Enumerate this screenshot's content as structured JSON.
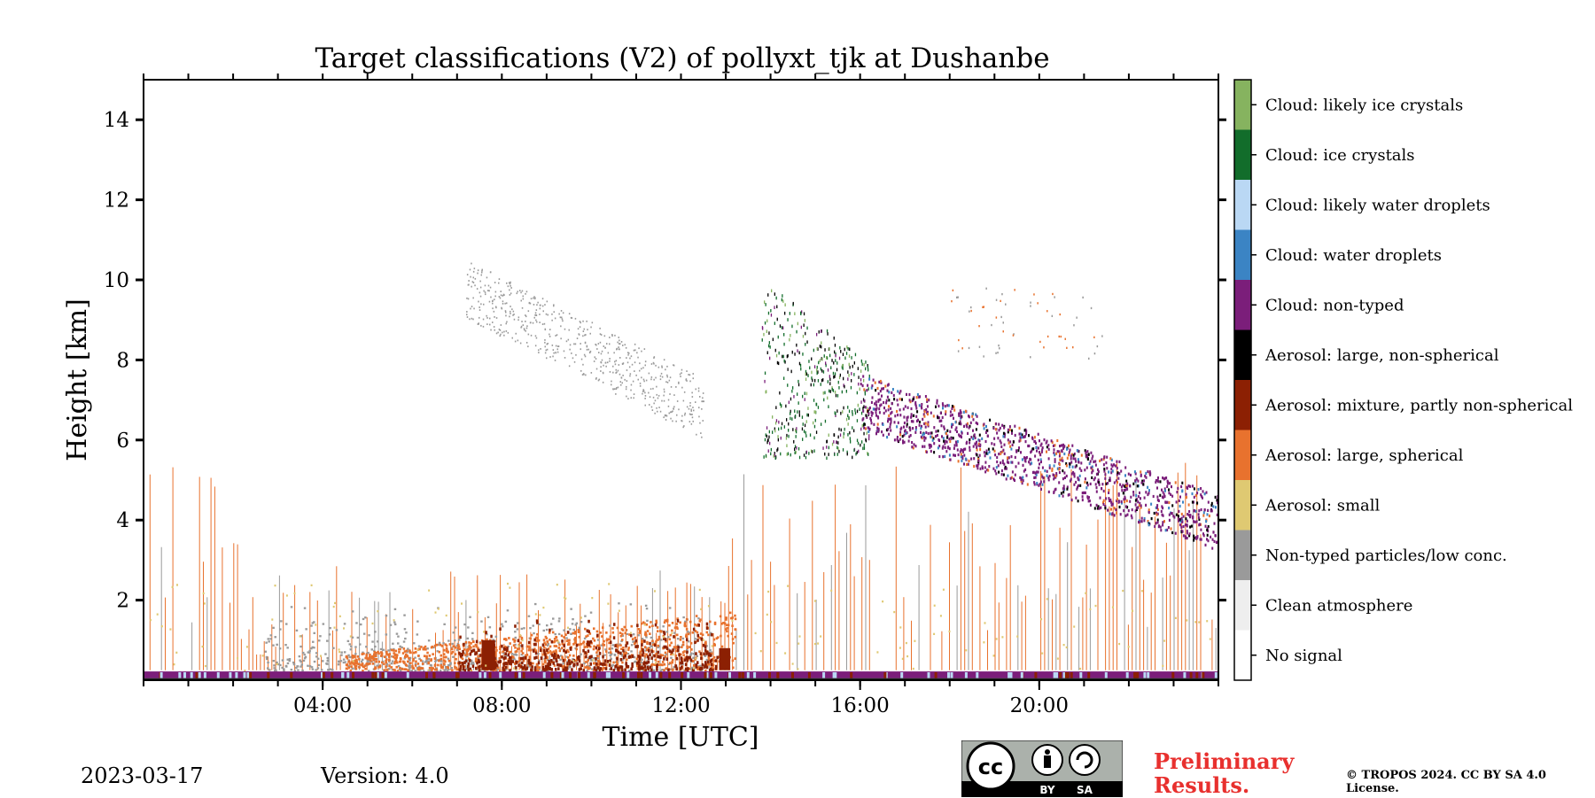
{
  "header": {
    "title": "Target classifications (V2) of pollyxt_tjk at Dushanbe"
  },
  "footer": {
    "date": "2023-03-17",
    "version": "Version: 4.0",
    "preliminary": "Preliminary Results.",
    "copyright": "© TROPOS 2024. CC BY SA 4.0 License.",
    "license_badge": {
      "by_label": "BY",
      "sa_label": "SA"
    }
  },
  "chart_data": {
    "type": "heatmap",
    "title": "Target classifications (V2) of pollyxt_tjk at Dushanbe",
    "xlabel": "Time [UTC]",
    "ylabel": "Height [km]",
    "xlim": [
      0,
      24
    ],
    "ylim": [
      0,
      15
    ],
    "x_ticks": [
      4,
      8,
      12,
      16,
      20
    ],
    "x_tick_labels": [
      "04:00",
      "08:00",
      "12:00",
      "16:00",
      "20:00"
    ],
    "y_ticks": [
      2,
      4,
      6,
      8,
      10,
      12,
      14
    ],
    "y_tick_labels": [
      "2",
      "4",
      "6",
      "8",
      "10",
      "12",
      "14"
    ],
    "colorbar": {
      "placement": "right",
      "classes": [
        {
          "label": "No signal",
          "color": "#ffffff"
        },
        {
          "label": "Clean atmosphere",
          "color": "#eeeeee"
        },
        {
          "label": "Non-typed particles/low conc.",
          "color": "#9a9a9a"
        },
        {
          "label": "Aerosol: small",
          "color": "#dfc972"
        },
        {
          "label": "Aerosol: large, spherical",
          "color": "#e8722e"
        },
        {
          "label": "Aerosol: mixture, partly non-spherical",
          "color": "#8c2003"
        },
        {
          "label": "Aerosol: large, non-spherical",
          "color": "#000000"
        },
        {
          "label": "Cloud: non-typed",
          "color": "#7b1e7a"
        },
        {
          "label": "Cloud: water droplets",
          "color": "#3b84c4"
        },
        {
          "label": "Cloud: likely water droplets",
          "color": "#bad8f4"
        },
        {
          "label": "Cloud: ice crystals",
          "color": "#126d2b"
        },
        {
          "label": "Cloud: likely ice crystals",
          "color": "#86b35f"
        }
      ]
    },
    "regions": [
      {
        "class": "Cloud: non-typed",
        "x": [
          0,
          24
        ],
        "y": [
          0,
          0.25
        ]
      },
      {
        "class": "Non-typed particles/low conc.",
        "x": [
          2.7,
          12.5
        ],
        "y": [
          0.2,
          1.8
        ]
      },
      {
        "class": "Aerosol: large, spherical",
        "x": [
          5.5,
          13
        ],
        "y": [
          0.2,
          1.3
        ]
      },
      {
        "class": "Aerosol: mixture, partly non-spherical",
        "x": [
          7,
          12.8
        ],
        "y": [
          0.2,
          1.4
        ]
      },
      {
        "class": "Non-typed particles/low conc.",
        "x": [
          7.2,
          12.5
        ],
        "y": [
          7,
          10.2
        ]
      },
      {
        "class": "Cloud: ice crystals",
        "x": [
          13.8,
          16.2
        ],
        "y": [
          5.5,
          10
        ]
      },
      {
        "class": "Cloud: non-typed",
        "x": [
          16,
          24
        ],
        "y": [
          3.5,
          7
        ]
      }
    ]
  }
}
